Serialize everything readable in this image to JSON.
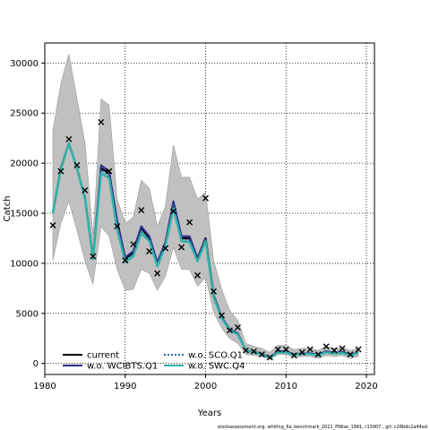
{
  "chart_data": {
    "type": "line",
    "xlabel": "Years",
    "ylabel": "Catch",
    "xlim": [
      1980,
      2021
    ],
    "ylim": [
      -1100,
      32000
    ],
    "x_ticks": [
      1980,
      1990,
      2000,
      2010,
      2020
    ],
    "y_ticks": [
      0,
      5000,
      10000,
      15000,
      20000,
      25000,
      30000
    ],
    "grid": true,
    "grid_style": "dotted",
    "legend_position": "bottom-left",
    "years": [
      1981,
      1982,
      1983,
      1984,
      1985,
      1986,
      1987,
      1988,
      1989,
      1990,
      1991,
      1992,
      1993,
      1994,
      1995,
      1996,
      1997,
      1998,
      1999,
      2000,
      2001,
      2002,
      2003,
      2004,
      2005,
      2006,
      2007,
      2008,
      2009,
      2010,
      2011,
      2012,
      2013,
      2014,
      2015,
      2016,
      2017,
      2018,
      2019
    ],
    "band": {
      "upper": [
        23300,
        28000,
        30900,
        26500,
        22000,
        12700,
        26400,
        25800,
        16400,
        14000,
        14600,
        18300,
        17500,
        13700,
        15700,
        21800,
        18600,
        18600,
        16400,
        17100,
        10300,
        7400,
        5300,
        4300,
        2000,
        1700,
        1500,
        1100,
        1800,
        1800,
        1400,
        1500,
        1500,
        1300,
        1700,
        1500,
        1600,
        1300,
        1500
      ],
      "lower": [
        10300,
        14000,
        16200,
        13300,
        10200,
        7900,
        13700,
        12700,
        9400,
        7300,
        7400,
        9400,
        9000,
        7300,
        8700,
        11600,
        9400,
        9400,
        7700,
        8600,
        5100,
        3500,
        2500,
        2000,
        900,
        800,
        700,
        400,
        900,
        900,
        600,
        700,
        700,
        500,
        800,
        700,
        800,
        500,
        700
      ]
    },
    "series": [
      {
        "name": "current",
        "color": "#000000",
        "dash": "solid",
        "values": [
          15000,
          19500,
          22000,
          19500,
          16500,
          10500,
          19500,
          19000,
          14000,
          10500,
          11000,
          13500,
          12500,
          10000,
          12000,
          16000,
          12500,
          12500,
          10500,
          12500,
          6800,
          4600,
          3400,
          3000,
          1300,
          1150,
          950,
          600,
          1200,
          1200,
          900,
          1000,
          1000,
          850,
          1200,
          1050,
          1150,
          850,
          1100
        ]
      },
      {
        "name": "w.o. WCIBTS.Q1",
        "color": "#2e2e8c",
        "dash": "solid",
        "values": [
          15000,
          19500,
          22000,
          19500,
          16500,
          10500,
          19800,
          19200,
          14300,
          10600,
          11200,
          13700,
          12700,
          10100,
          12100,
          16200,
          12700,
          12700,
          10500,
          12400,
          6800,
          4600,
          3400,
          3000,
          1300,
          1150,
          950,
          600,
          1200,
          1200,
          900,
          1000,
          1000,
          850,
          1200,
          1050,
          1150,
          850,
          1100
        ]
      },
      {
        "name": "w.o. SCO.Q1",
        "color": "#1a6fa8",
        "dash": "dotted",
        "values": [
          15000,
          19500,
          22000,
          19500,
          16500,
          10500,
          19300,
          18800,
          13700,
          10300,
          10900,
          13300,
          12400,
          9900,
          11900,
          15800,
          12400,
          12300,
          10300,
          12300,
          6700,
          4500,
          3300,
          2900,
          1300,
          1100,
          900,
          600,
          1150,
          1150,
          850,
          950,
          950,
          800,
          1150,
          1000,
          1100,
          800,
          1050
        ]
      },
      {
        "name": "w.o. SWC.Q4",
        "color": "#2eb3a8",
        "dash": "solid",
        "values": [
          15000,
          19400,
          22000,
          19500,
          16400,
          10400,
          19000,
          18500,
          13400,
          10100,
          10700,
          13000,
          12200,
          9700,
          11700,
          15500,
          12200,
          12100,
          10200,
          12200,
          6600,
          4500,
          3300,
          2900,
          1300,
          1100,
          900,
          550,
          1100,
          1100,
          850,
          950,
          950,
          800,
          1100,
          1000,
          1050,
          800,
          1050
        ]
      }
    ],
    "observed": {
      "marker": "x",
      "values": [
        13800,
        19200,
        22400,
        19800,
        17300,
        10700,
        24100,
        19200,
        13700,
        10300,
        11900,
        15300,
        11200,
        9000,
        11500,
        15200,
        11600,
        14100,
        8800,
        16500,
        7200,
        4800,
        3300,
        3600,
        1300,
        1200,
        900,
        600,
        1400,
        1400,
        800,
        1100,
        1400,
        900,
        1700,
        1300,
        1500,
        900,
        1400
      ]
    }
  },
  "footer_text": "stockassessment.org, whiting_6a_benchmark_2021_PWise_1981, r13907 , git: c28bdc2a44ad"
}
